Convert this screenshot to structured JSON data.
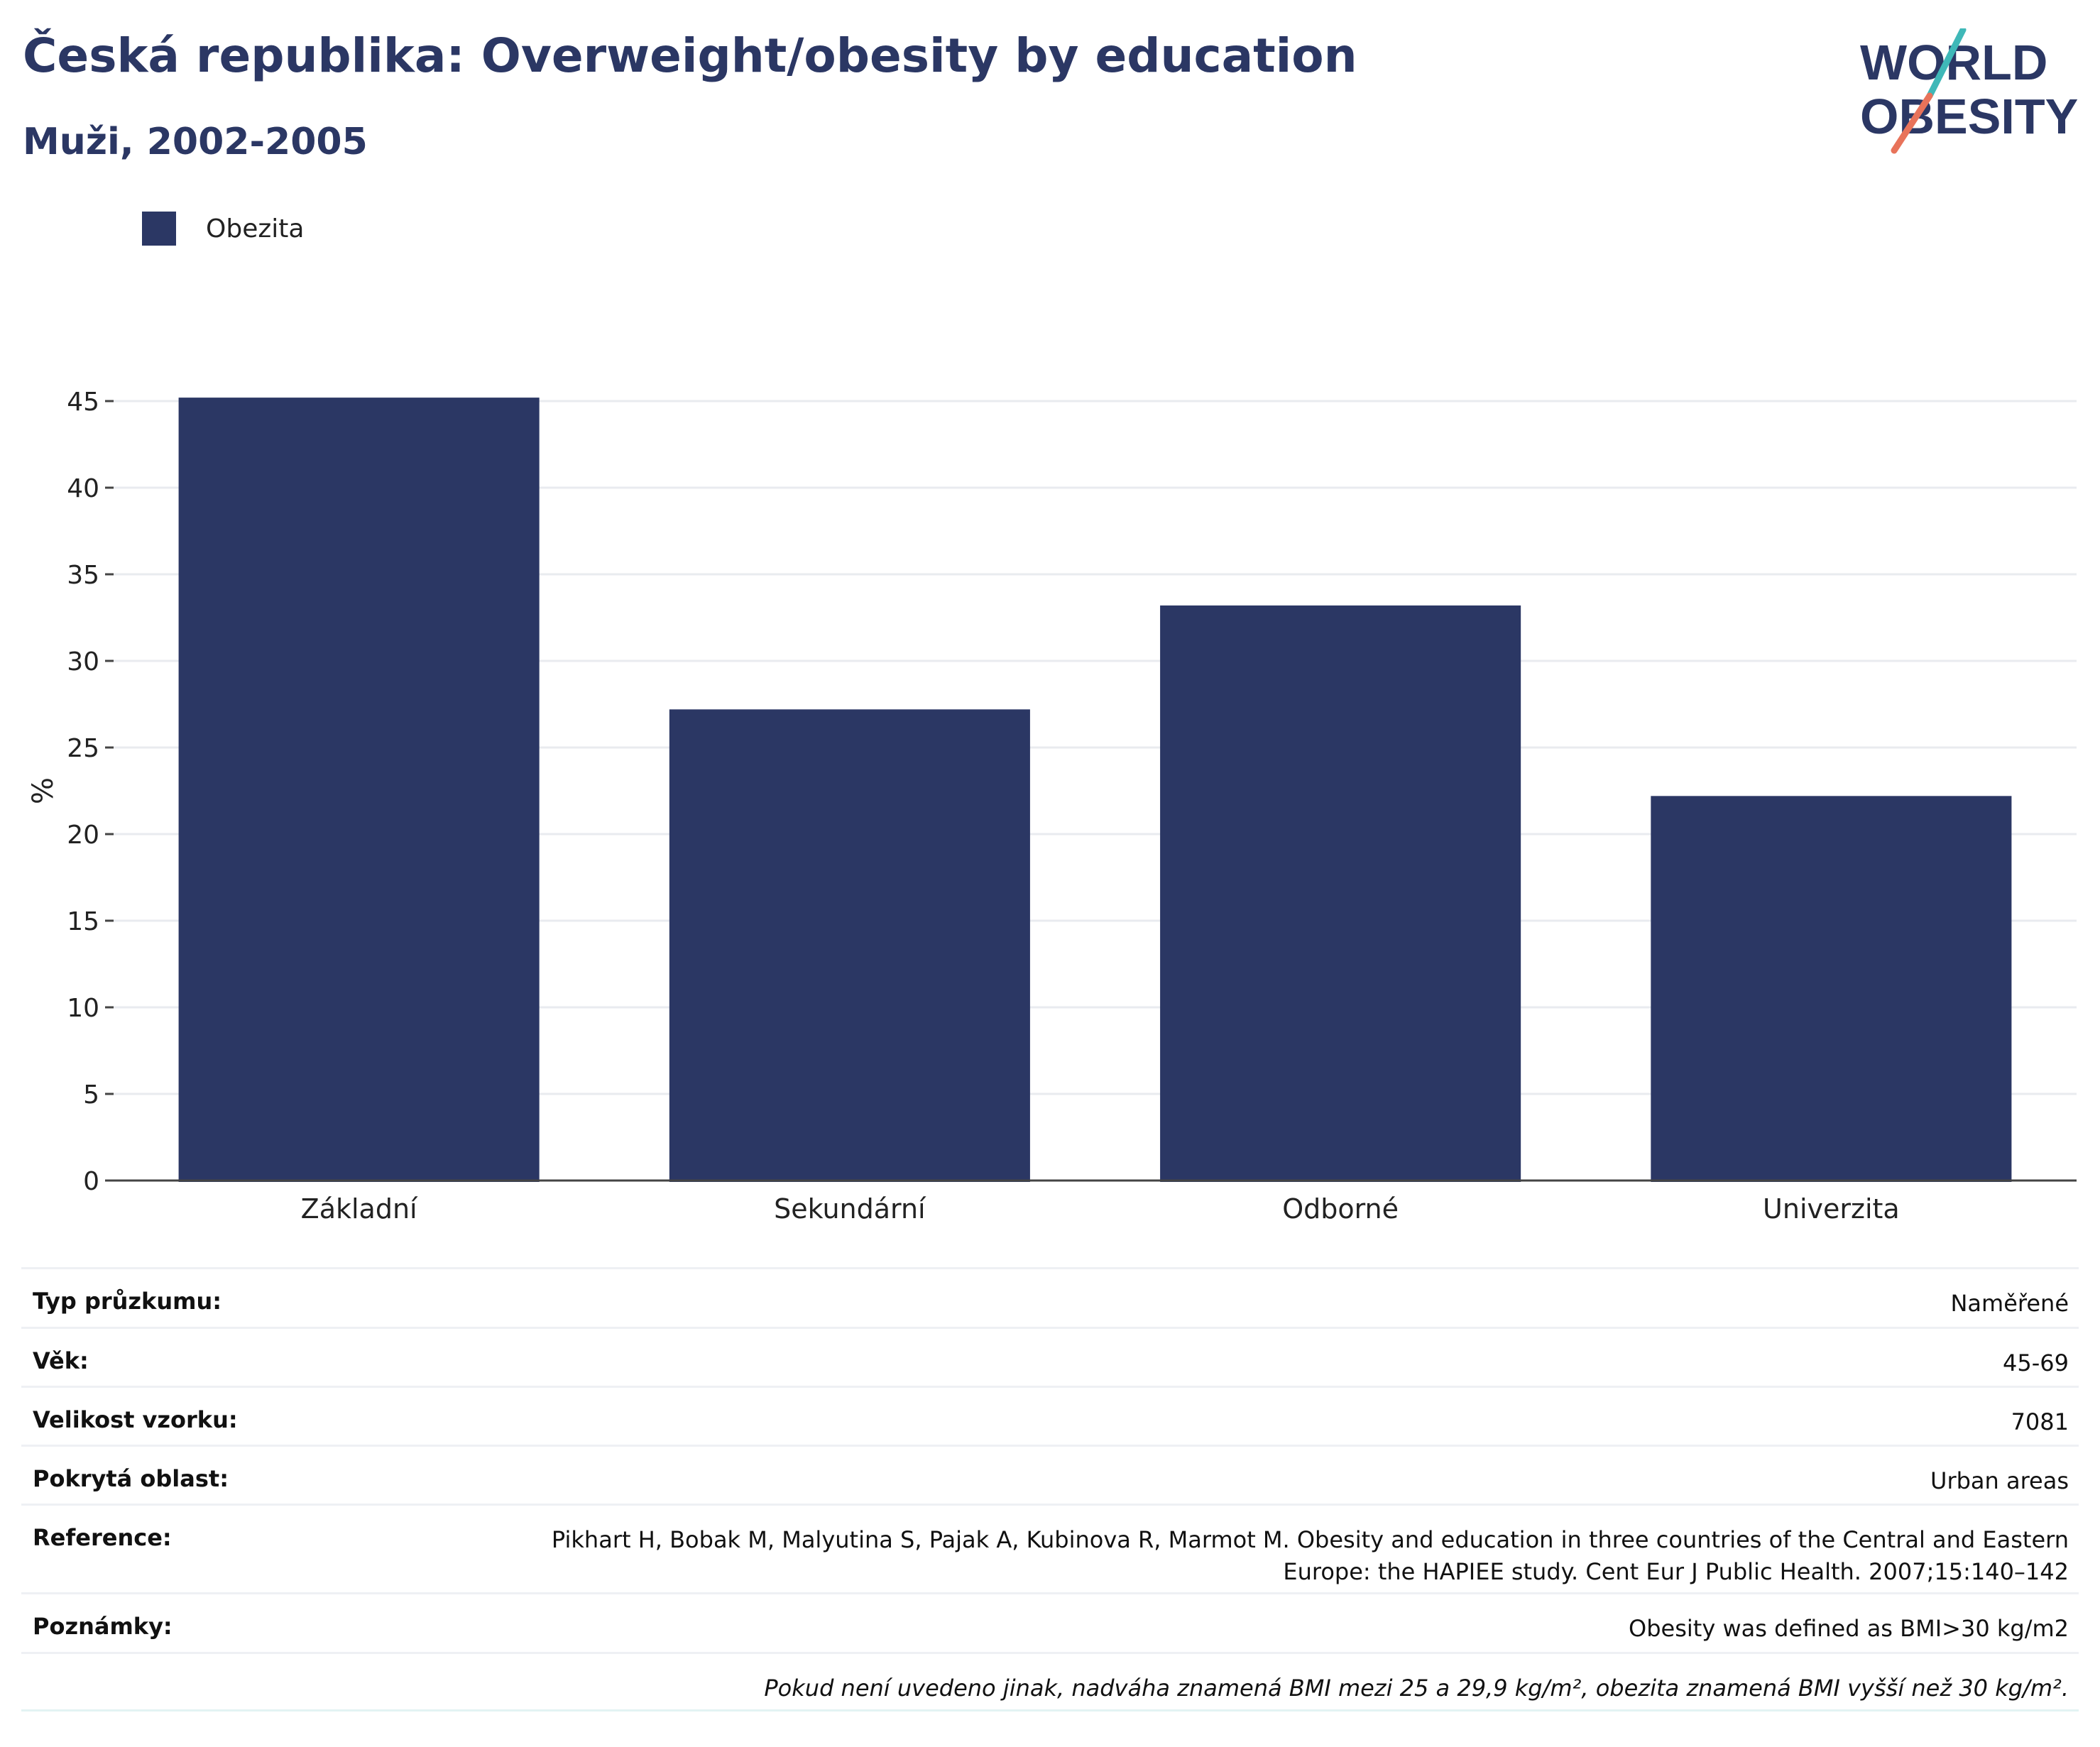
{
  "header": {
    "title": "Česká republika: Overweight/obesity by education",
    "subtitle": "Muži, 2002-2005"
  },
  "logo": {
    "line1": "WORLD",
    "line2": "OBESITY",
    "colors": {
      "text": "#2b3764",
      "slash_teal": "#3fb8b8",
      "slash_red": "#e8735a"
    }
  },
  "legend": {
    "label": "Obezita",
    "color": "#2b3764"
  },
  "chart_data": {
    "type": "bar",
    "categories": [
      "Základní",
      "Sekundární",
      "Odborné",
      "Univerzita"
    ],
    "series": [
      {
        "name": "Obezita",
        "values": [
          45.2,
          27.2,
          33.2,
          22.2
        ],
        "color": "#2b3764"
      }
    ],
    "xlabel": "",
    "ylabel": "%",
    "ylim": [
      0,
      45
    ],
    "yticks": [
      0,
      5,
      10,
      15,
      20,
      25,
      30,
      35,
      40,
      45
    ],
    "grid": true,
    "legend_position": "top-left"
  },
  "info": {
    "rows": [
      {
        "key": "Typ průzkumu:",
        "value": "Naměřené"
      },
      {
        "key": "Věk:",
        "value": "45-69"
      },
      {
        "key": "Velikost vzorku:",
        "value": "7081"
      },
      {
        "key": "Pokrytá oblast:",
        "value": "Urban areas"
      },
      {
        "key": "Reference:",
        "value_lines": [
          "Pikhart H, Bobak M, Malyutina S, Pajak A, Kubinova R, Marmot M. Obesity and education in three countries of the Central and Eastern",
          "Europe: the HAPIEE study. Cent Eur J Public Health. 2007;15:140–142"
        ]
      },
      {
        "key": "Poznámky:",
        "value": "Obesity was defined as BMI>30 kg/m2"
      }
    ],
    "footnote": "Pokud není uvedeno jinak, nadváha znamená BMI mezi 25 a 29,9 kg/m², obezita znamená BMI vyšší než 30 kg/m²."
  }
}
